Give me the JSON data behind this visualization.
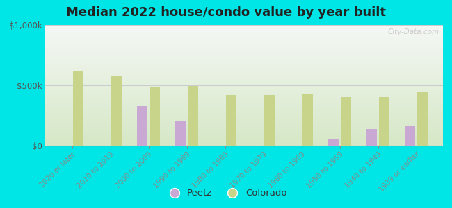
{
  "title": "Median 2022 house/condo value by year built",
  "categories": [
    "2020 or later",
    "2010 to 2019",
    "2000 to 2009",
    "1990 to 1999",
    "1980 to 1989",
    "1970 to 1979",
    "1960 to 1969",
    "1950 to 1959",
    "1940 to 1949",
    "1939 or earlier"
  ],
  "peetz_values": [
    null,
    null,
    330000,
    200000,
    null,
    null,
    null,
    55000,
    140000,
    160000
  ],
  "colorado_values": [
    620000,
    580000,
    490000,
    495000,
    420000,
    420000,
    425000,
    400000,
    400000,
    445000
  ],
  "peetz_color": "#c9a8d4",
  "colorado_color": "#c8d48a",
  "background_color": "#00e5e5",
  "ylim": [
    0,
    1000000
  ],
  "yticks": [
    0,
    500000,
    1000000
  ],
  "bar_width": 0.28,
  "watermark": "City-Data.com",
  "figsize": [
    6.5,
    3.0
  ],
  "dpi": 100
}
